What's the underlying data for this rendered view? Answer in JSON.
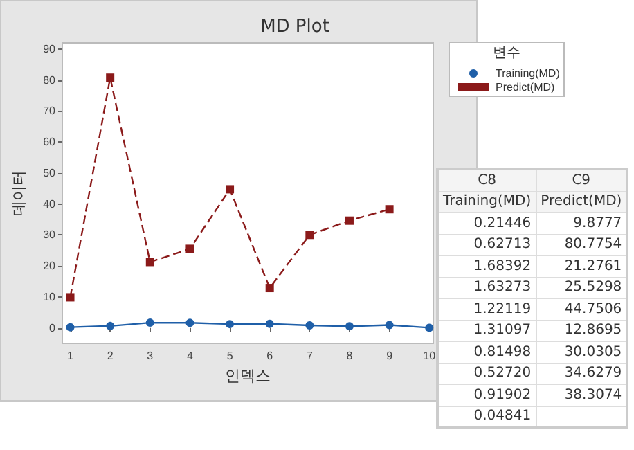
{
  "chart_data": {
    "type": "line",
    "title": "MD Plot",
    "xlabel": "인덱스",
    "ylabel": "데이터",
    "legend_title": "변수",
    "legend": "top right",
    "x": [
      1,
      2,
      3,
      4,
      5,
      6,
      7,
      8,
      9,
      10
    ],
    "xlim": [
      0.8,
      10.1
    ],
    "xticks": [
      1,
      2,
      3,
      4,
      5,
      6,
      7,
      8,
      9,
      10
    ],
    "ylim": [
      -5,
      92
    ],
    "yticks": [
      0,
      10,
      20,
      30,
      40,
      50,
      60,
      70,
      80,
      90
    ],
    "grid": false,
    "annotations": [
      "C8",
      "C9",
      "0.21446",
      "0.62713",
      "1.68392",
      "1.63273",
      "1.22119",
      "1.31097",
      "0.81498",
      "0.52720",
      "0.91902",
      "0.04841",
      "9.8777",
      "80.7754",
      "21.2761",
      "25.5298",
      "44.7506",
      "12.8695",
      "30.0305",
      "34.6279",
      "38.3074"
    ],
    "series": [
      {
        "name": "Training(MD)",
        "color": "#1f5fa8",
        "marker": "circle",
        "line_style": "solid",
        "values": [
          0.21446,
          0.62713,
          1.68392,
          1.63273,
          1.22119,
          1.31097,
          0.81498,
          0.5272,
          0.91902,
          0.04841
        ]
      },
      {
        "name": "Predict(MD)",
        "color": "#8b1a1a",
        "marker": "square",
        "line_style": "dashed",
        "values": [
          9.8777,
          80.7754,
          21.2761,
          25.5298,
          44.7506,
          12.8695,
          30.0305,
          34.6279,
          38.3074,
          null
        ]
      }
    ]
  }
}
